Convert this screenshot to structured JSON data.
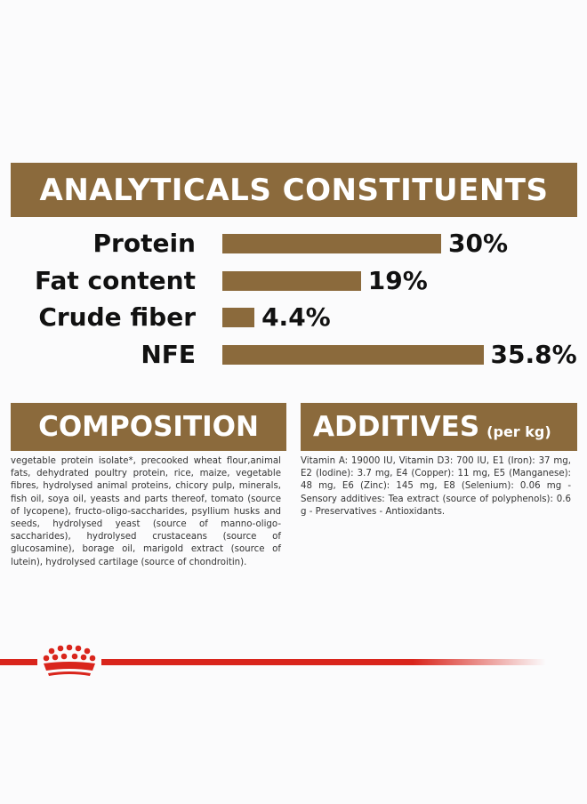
{
  "analytics": {
    "title": "ANALYTICALS CONSTITUENTS",
    "rows": [
      {
        "label": "Protein",
        "value": "30%",
        "amount": 30
      },
      {
        "label": "Fat content",
        "value": "19%",
        "amount": 19
      },
      {
        "label": "Crude fiber",
        "value": "4.4%",
        "amount": 4.4
      },
      {
        "label": "NFE",
        "value": "35.8%",
        "amount": 35.8
      }
    ]
  },
  "composition": {
    "title": "COMPOSITION",
    "text": "vegetable protein isolate*, precooked wheat flour,animal fats, dehydrated poultry protein, rice, maize, vegetable fibres, hydrolysed animal proteins, chicory pulp, minerals, fish oil, soya oil, yeasts and parts thereof, tomato (source of lycopene), fructo-oligo-saccharides, psyllium husks and seeds, hydrolysed yeast (source of manno-oligo-saccharides), hydrolysed crustaceans (source of glucosamine), borage oil, marigold extract (source of lutein), hydrolysed cartilage (source of chondroitin)."
  },
  "additives": {
    "title": "ADDITIVES",
    "subtitle": "(per kg)",
    "text": "Vitamin A: 19000 IU, Vitamin D3: 700 IU, E1 (Iron): 37 mg, E2 (Iodine): 3.7 mg, E4 (Copper): 11 mg, E5 (Manganese): 48 mg, E6 (Zinc): 145 mg, E8 (Selenium): 0.06 mg - Sensory additives: Tea extract (source of polyphenols): 0.6 g - Preservatives - Antioxidants."
  },
  "brand": {
    "logo": "crown-icon",
    "accent_color": "#d9251c",
    "brown_color": "#8b6a3c"
  }
}
